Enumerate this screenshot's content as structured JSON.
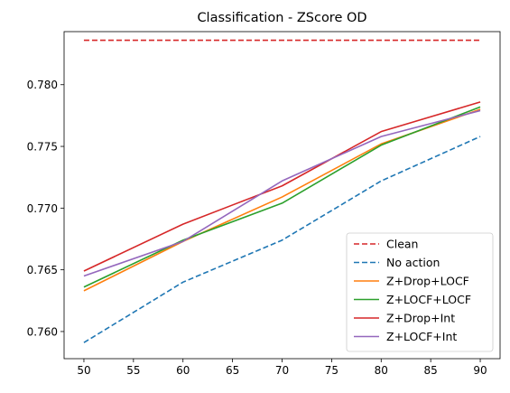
{
  "chart_data": {
    "type": "line",
    "title": "Classification - ZScore OD",
    "xlabel": "",
    "ylabel": "",
    "x": [
      50,
      60,
      70,
      80,
      90
    ],
    "xlim": [
      48,
      92
    ],
    "ylim": [
      0.7578,
      0.7843
    ],
    "xticks": [
      50,
      55,
      60,
      65,
      70,
      75,
      80,
      85,
      90
    ],
    "yticks": [
      0.76,
      0.765,
      0.77,
      0.775,
      0.78
    ],
    "ytick_labels": [
      "0.760",
      "0.765",
      "0.770",
      "0.775",
      "0.780"
    ],
    "grid": false,
    "legend_position": "lower-right",
    "series": [
      {
        "name": "Clean",
        "color": "#d62728",
        "dash": "dashed",
        "values": [
          0.7836,
          0.7836,
          0.7836,
          0.7836,
          0.7836
        ]
      },
      {
        "name": "No action",
        "color": "#1f77b4",
        "dash": "dashed",
        "values": [
          0.7591,
          0.764,
          0.7674,
          0.7722,
          0.7758
        ]
      },
      {
        "name": "Z+Drop+LOCF",
        "color": "#ff7f0e",
        "dash": "solid",
        "values": [
          0.7633,
          0.7673,
          0.7709,
          0.7752,
          0.778
        ]
      },
      {
        "name": "Z+LOCF+LOCF",
        "color": "#2ca02c",
        "dash": "solid",
        "values": [
          0.7636,
          0.7674,
          0.7704,
          0.7751,
          0.7782
        ]
      },
      {
        "name": "Z+Drop+Int",
        "color": "#d62728",
        "dash": "solid",
        "values": [
          0.7649,
          0.7687,
          0.7718,
          0.7762,
          0.7786
        ]
      },
      {
        "name": "Z+LOCF+Int",
        "color": "#9467bd",
        "dash": "solid",
        "values": [
          0.7645,
          0.7673,
          0.7722,
          0.7758,
          0.7779
        ]
      }
    ]
  }
}
